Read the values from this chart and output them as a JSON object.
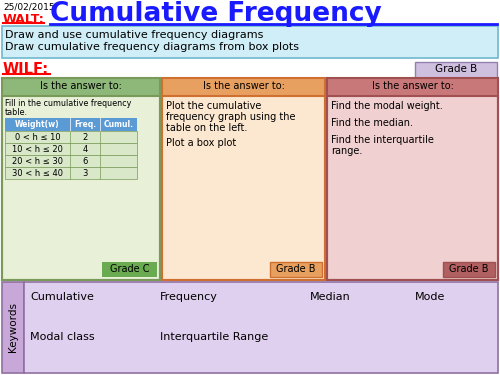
{
  "date": "25/02/2015",
  "title": "Cumulative Frequency",
  "walt_label": "WALT:",
  "walt_text1": "Draw and use cumulative frequency diagrams",
  "walt_text2": "Draw cumulative frequency diagrams from box plots",
  "wilf_label": "WILF:",
  "grade_b_top": "Grade B",
  "col1_header": "Is the answer to:",
  "col1_table_headers": [
    "Weight(w)",
    "Freq.",
    "Cumul."
  ],
  "col1_table_rows": [
    [
      "0 < h ≤ 10",
      "2",
      ""
    ],
    [
      "10 < h ≤ 20",
      "4",
      ""
    ],
    [
      "20 < h ≤ 30",
      "6",
      ""
    ],
    [
      "30 < h ≤ 40",
      "3",
      ""
    ]
  ],
  "col1_grade": "Grade C",
  "col2_header": "Is the answer to:",
  "col2_grade": "Grade B",
  "col3_header": "Is the answer to:",
  "col3_grade": "Grade B",
  "keywords_label": "Keywords",
  "bg_color": "#ffffff",
  "title_color": "#1a1aff",
  "walt_color": "#ff0000",
  "wilf_color": "#ff0000",
  "walt_bg": "#d0eef8",
  "walt_border": "#70b8d0",
  "col1_header_bg": "#8db87a",
  "col1_body_bg": "#e8f0d8",
  "col1_border": "#7a9a5a",
  "col1_table_header_bg": "#5b9bd5",
  "col1_table_row_bg": "#d8e8c8",
  "col1_grade_bg": "#6aaa50",
  "col2_header_bg": "#e8a060",
  "col2_body_bg": "#fce8d0",
  "col2_border": "#d07030",
  "col2_grade_bg": "#e8a060",
  "col3_header_bg": "#c87878",
  "col3_body_bg": "#f0d0d0",
  "col3_border": "#a05050",
  "col3_grade_bg": "#b06060",
  "keywords_side_bg": "#c8a8d8",
  "keywords_body_bg": "#e0d0f0",
  "keywords_border": "#9070a0",
  "grade_b_top_bg": "#d0c0e0",
  "grade_b_top_border": "#9080b0"
}
